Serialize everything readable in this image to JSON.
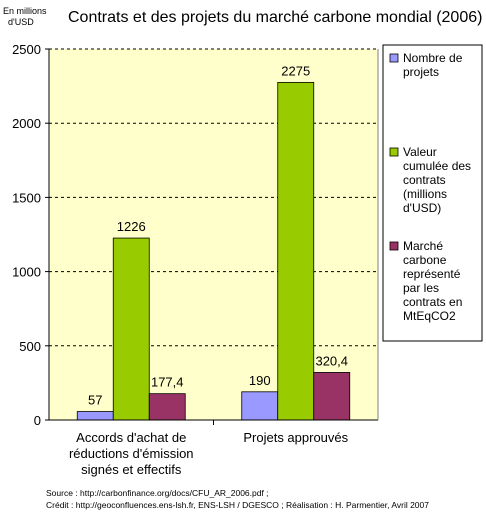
{
  "chart_data": {
    "type": "bar",
    "title": "Contrats et des projets du marché carbone mondial (2006)",
    "ylabel_lines": [
      "En millions",
      "d'USD"
    ],
    "ylim": [
      0,
      2500
    ],
    "yticks": [
      0,
      500,
      1000,
      1500,
      2000,
      2500
    ],
    "ytick_labels": [
      "0",
      "500",
      "1000",
      "1500",
      "2000",
      "2500"
    ],
    "grid": "horizontal dashed",
    "categories": [
      [
        "Accords d'achat de",
        "réductions d'émission",
        "signés et effectifs"
      ],
      [
        "Projets approuvés"
      ]
    ],
    "legend_position": "right",
    "series": [
      {
        "name_lines": [
          "Nombre de",
          "projets"
        ],
        "color": "#9999ff",
        "values": [
          57,
          190
        ],
        "value_labels": [
          "57",
          "190"
        ]
      },
      {
        "name_lines": [
          "Valeur",
          "cumulée des",
          "contrats",
          "(millions",
          "d'USD)"
        ],
        "color": "#99cc00",
        "values": [
          1226,
          2275
        ],
        "value_labels": [
          "1226",
          "2275"
        ]
      },
      {
        "name_lines": [
          "Marché",
          "carbone",
          "représenté",
          "par les",
          "contrats en",
          "MtEqCO2"
        ],
        "color": "#993366",
        "values": [
          177.4,
          320.4
        ],
        "value_labels": [
          "177,4",
          "320,4"
        ]
      }
    ],
    "plot_background": "#ffffcc"
  },
  "footer": {
    "source": "Source : http://carbonfinance.org/docs/CFU_AR_2006.pdf ;",
    "credit": "Crédit : http://geoconfluences.ens-lsh.fr, ENS-LSH / DGESCO ;   Réalisation : H. Parmentier,  Avril 2007"
  }
}
